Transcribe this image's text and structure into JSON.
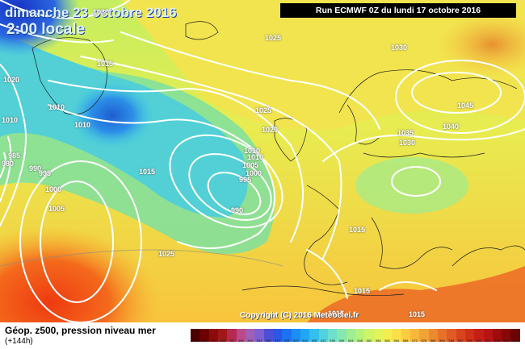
{
  "header": {
    "date": "dimanche 23 octobre 2016",
    "time": "2:00 locale",
    "run": "Run ECMWF 0Z du lundi 17 octobre 2016"
  },
  "footer": {
    "field": "Géop. z500, pression niveau mer",
    "lead": "(+144h)",
    "copyright": "Copyright (C) 2016 Meteociel.fr"
  },
  "isobar_labels": [
    "1030",
    "1025",
    "1015",
    "1020",
    "1010",
    "1010",
    "1010",
    "985",
    "980",
    "990",
    "995",
    "1000",
    "1005",
    "1025",
    "1010",
    "1020",
    "1015",
    "1010",
    "1005",
    "1000",
    "995",
    "990",
    "1025",
    "1030",
    "1045",
    "1035",
    "1040",
    "1030",
    "1015",
    "1015",
    "1015",
    "1015"
  ],
  "legend_values": [
    "476",
    "480",
    "484",
    "488",
    "492",
    "496",
    "500",
    "504",
    "508",
    "512",
    "516",
    "520",
    "524",
    "528",
    "532",
    "536",
    "540",
    "544",
    "548",
    "552",
    "556",
    "560",
    "564",
    "568",
    "572",
    "576",
    "580",
    "584",
    "588",
    "592",
    "596",
    "600",
    "604",
    "608",
    "612",
    "616"
  ],
  "legend_colors": [
    "#4a0000",
    "#6d0000",
    "#8c0a0a",
    "#a01818",
    "#b42a50",
    "#bb4a8a",
    "#a25fb5",
    "#7f5fcf",
    "#4c4fd6",
    "#2b57e6",
    "#1c72f2",
    "#1c8ff6",
    "#20a8f4",
    "#34c0ee",
    "#50d2e0",
    "#6ce0cc",
    "#86e8b0",
    "#9eee92",
    "#b6f27a",
    "#cef468",
    "#e2f45c",
    "#f2ee52",
    "#faE048",
    "#fccc40",
    "#f8b83a",
    "#f2a236",
    "#ec8a30",
    "#e6722a",
    "#e05a24",
    "#d8441e",
    "#d03018",
    "#c42016",
    "#b81414",
    "#a00c0c",
    "#880808",
    "#6c0404"
  ]
}
